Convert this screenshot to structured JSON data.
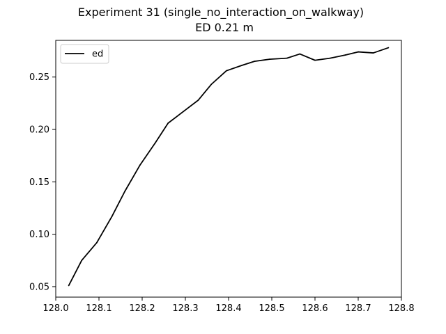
{
  "chart_data": {
    "type": "line",
    "title": "Experiment 31 (single_no_interaction_on_walkway)",
    "subtitle": "ED 0.21 m",
    "xlabel": "",
    "ylabel": "",
    "xlim": [
      128.0,
      128.8
    ],
    "ylim": [
      0.04,
      0.285
    ],
    "xticks": [
      128.0,
      128.1,
      128.2,
      128.3,
      128.4,
      128.5,
      128.6,
      128.7,
      128.8
    ],
    "xtick_labels": [
      "128.0",
      "128.1",
      "128.2",
      "128.3",
      "128.4",
      "128.5",
      "128.6",
      "128.7",
      "128.8"
    ],
    "yticks": [
      0.05,
      0.1,
      0.15,
      0.2,
      0.25
    ],
    "ytick_labels": [
      "0.05",
      "0.10",
      "0.15",
      "0.20",
      "0.25"
    ],
    "grid": false,
    "legend_position": "top-left",
    "series": [
      {
        "name": "ed",
        "color": "#000000",
        "x": [
          128.03,
          128.06,
          128.095,
          128.13,
          128.16,
          128.195,
          128.23,
          128.26,
          128.295,
          128.33,
          128.36,
          128.395,
          128.43,
          128.46,
          128.495,
          128.535,
          128.565,
          128.6,
          128.635,
          128.67,
          128.7,
          128.735,
          128.77
        ],
        "y": [
          0.051,
          0.075,
          0.092,
          0.117,
          0.141,
          0.166,
          0.187,
          0.206,
          0.217,
          0.228,
          0.243,
          0.256,
          0.261,
          0.265,
          0.267,
          0.268,
          0.272,
          0.266,
          0.268,
          0.271,
          0.274,
          0.273,
          0.278
        ]
      }
    ]
  }
}
